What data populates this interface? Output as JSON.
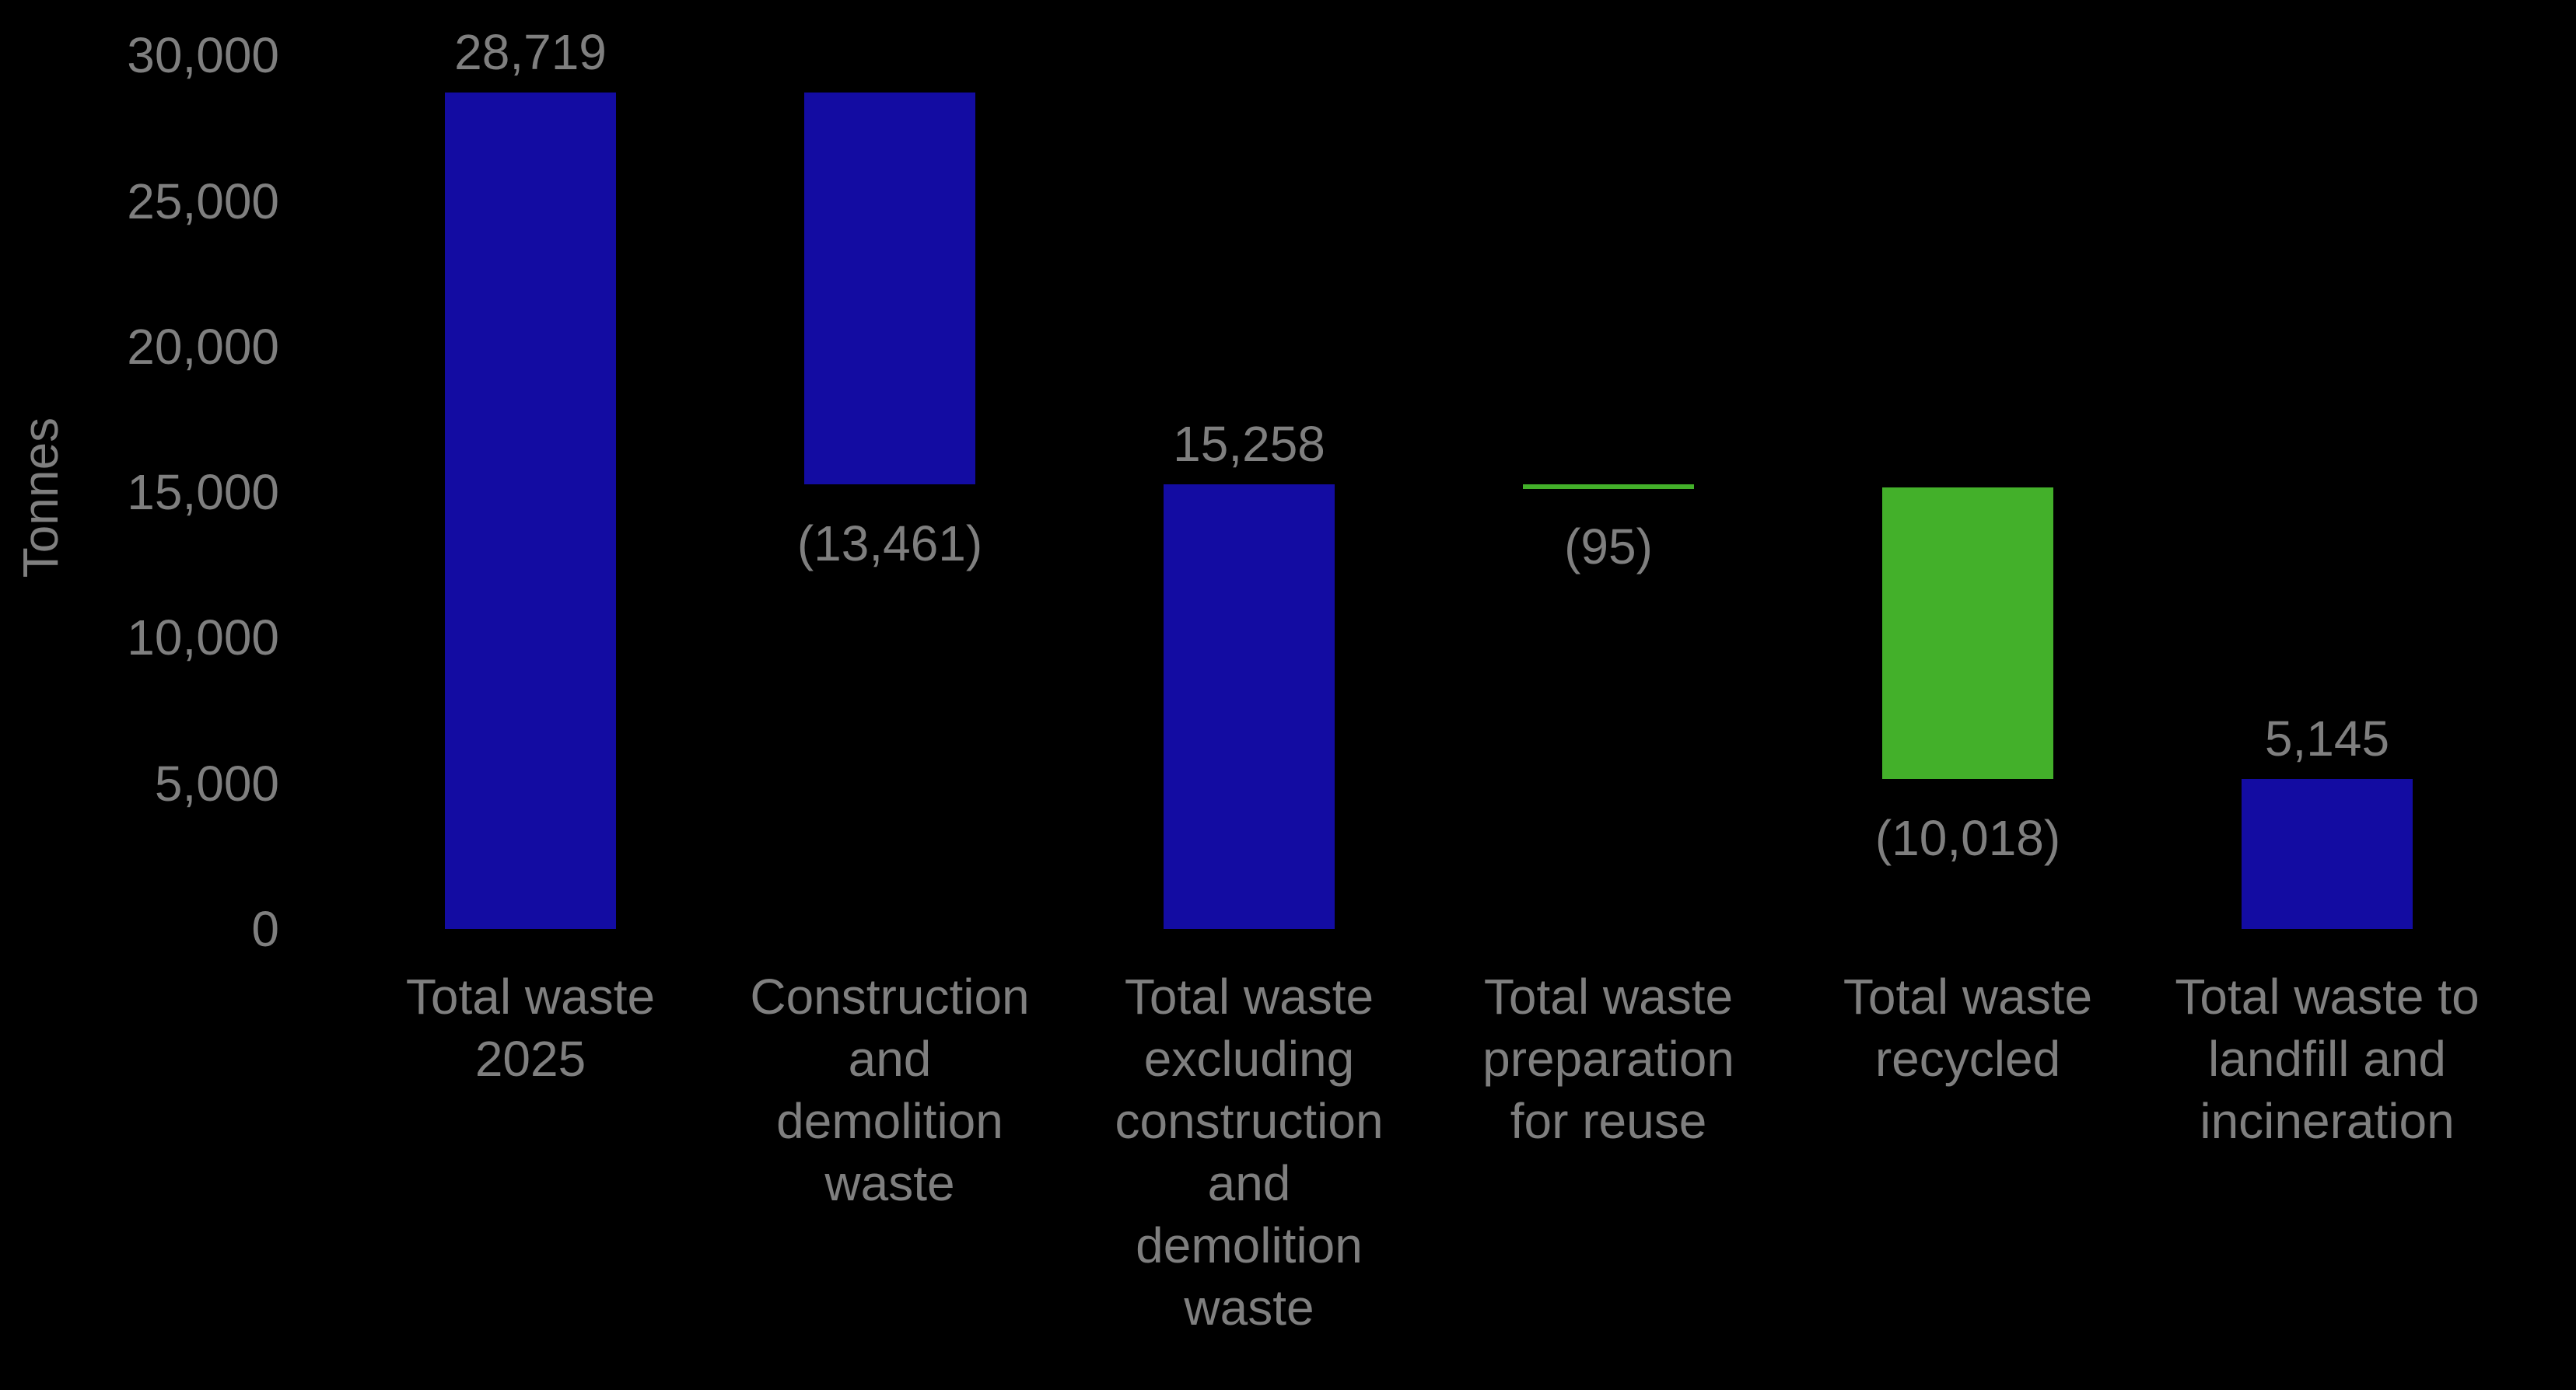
{
  "background": "#000000",
  "text_color": "#7f7f7f",
  "chart_data": {
    "type": "bar",
    "subtype": "waterfall",
    "title": "",
    "xlabel": "",
    "ylabel": "Tonnes",
    "ylim": [
      0,
      30000
    ],
    "ytick_interval": 5000,
    "yticks": [
      {
        "value": 0,
        "label": "0"
      },
      {
        "value": 5000,
        "label": "5,000"
      },
      {
        "value": 10000,
        "label": "10,000"
      },
      {
        "value": 15000,
        "label": "15,000"
      },
      {
        "value": 20000,
        "label": "20,000"
      },
      {
        "value": 25000,
        "label": "25,000"
      },
      {
        "value": 30000,
        "label": "30,000"
      }
    ],
    "grid": false,
    "legend_position": "none",
    "colors": {
      "blue": "#130ca2",
      "green": "#43b02a"
    },
    "categories": [
      "Total waste 2025",
      "Construction and demolition waste",
      "Total waste excluding construction and demolition waste",
      "Total waste preparation for reuse",
      "Total waste recycled",
      "Total waste to landfill and incineration"
    ],
    "bars": [
      {
        "category_lines": "Total waste\n2025",
        "start": 0,
        "end": 28719,
        "value": 28719,
        "value_label": "28,719",
        "label_position": "above",
        "color": "blue"
      },
      {
        "category_lines": "Construction\nand\ndemolition\nwaste",
        "start": 15258,
        "end": 28719,
        "value": -13461,
        "value_label": "(13,461)",
        "label_position": "below",
        "color": "blue"
      },
      {
        "category_lines": "Total waste\nexcluding\nconstruction\nand\ndemolition\nwaste",
        "start": 0,
        "end": 15258,
        "value": 15258,
        "value_label": "15,258",
        "label_position": "above",
        "color": "blue"
      },
      {
        "category_lines": "Total waste\npreparation\nfor reuse",
        "start": 15163,
        "end": 15258,
        "value": -95,
        "value_label": "(95)",
        "label_position": "below",
        "color": "green"
      },
      {
        "category_lines": "Total waste\nrecycled",
        "start": 5145,
        "end": 15163,
        "value": -10018,
        "value_label": "(10,018)",
        "label_position": "below",
        "color": "green"
      },
      {
        "category_lines": "Total waste to\nlandfill and\nincineration",
        "start": 0,
        "end": 5145,
        "value": 5145,
        "value_label": "5,145",
        "label_position": "above",
        "color": "blue"
      }
    ]
  }
}
